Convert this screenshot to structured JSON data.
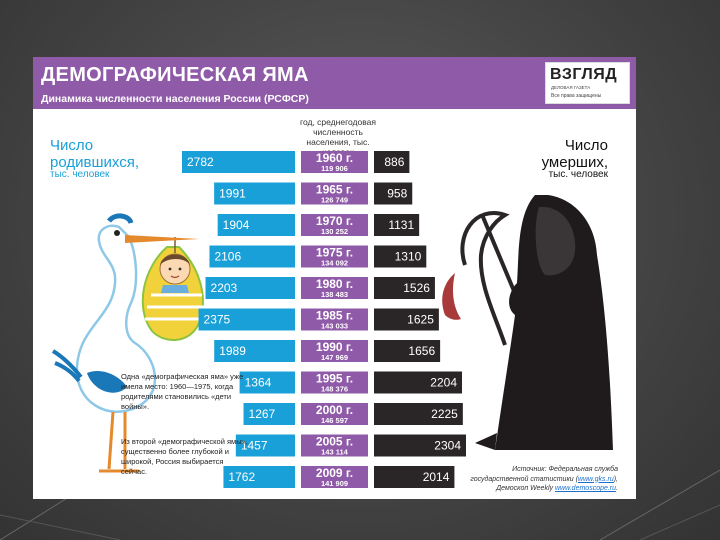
{
  "header": {
    "title": "ДЕМОГРАФИЧЕСКАЯ ЯМА",
    "subtitle": "Динамика численности населения России (РСФСР)",
    "brand": "ВЗГЛЯД",
    "brand_tagline_1": "ДЕЛОВАЯ ГАЗЕТА",
    "brand_tagline_2": "Все права защищены"
  },
  "labels": {
    "births_title_1": "Число",
    "births_title_2": "родившихся,",
    "births_unit": "тыс. человек",
    "deaths_title_1": "Число",
    "deaths_title_2": "умерших,",
    "deaths_unit": "тыс. человек",
    "center_header": "год, среднегодовая численность населения, тыс. человек"
  },
  "notes": {
    "note1": "Одна «демографическая яма» уже имела место: 1960—1975, когда родителями становились «дети войны».",
    "note2": "Из второй «демографической ямы», существенно более глубокой и широкой, Россия выбирается сейчас."
  },
  "source": {
    "line1_prefix": "Источник: Федеральная служба",
    "line2_prefix": "государственной статистики (",
    "line2_link": "www.gks.ru",
    "line2_suffix": "),",
    "line3_prefix": "Демоскоп Weekly ",
    "line3_link": "www.demoscope.ru",
    "line3_suffix": "."
  },
  "colors": {
    "births": "#1aa0d8",
    "deaths": "#2a2627",
    "year_box": "#8f5aa8",
    "header": "#8f5aa8"
  },
  "chart_data": {
    "type": "bar",
    "categories": [
      "1960 г.",
      "1965 г.",
      "1970 г.",
      "1975 г.",
      "1980 г.",
      "1985 г.",
      "1990 г.",
      "1995 г.",
      "2000 г.",
      "2005 г.",
      "2009 г."
    ],
    "population": [
      "119 906",
      "126 749",
      "130 252",
      "134 092",
      "138 483",
      "143 033",
      "147 969",
      "148 376",
      "146 597",
      "143 114",
      "141 909"
    ],
    "series": [
      {
        "name": "Число родившихся, тыс. человек",
        "values": [
          2782,
          1991,
          1904,
          2106,
          2203,
          2375,
          1989,
          1364,
          1267,
          1457,
          1762
        ]
      },
      {
        "name": "Число умерших, тыс. человек",
        "values": [
          886,
          958,
          1131,
          1310,
          1526,
          1625,
          1656,
          2204,
          2225,
          2304,
          2014
        ]
      }
    ]
  }
}
